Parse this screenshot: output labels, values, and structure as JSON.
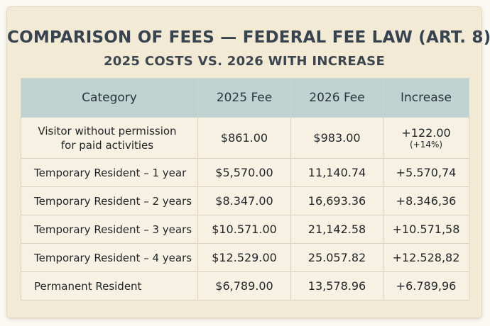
{
  "title": "COMPARISON OF FEES — FEDERAL FEE LAW (ART. 8)",
  "subtitle": "2025 COSTS VS. 2026 WITH INCREASE",
  "table": {
    "headers": [
      "Category",
      "2025 Fee",
      "2026 Fee",
      "Increase"
    ],
    "rows": [
      {
        "category_line1": "Visitor without permission",
        "category_line2": "for paid activities",
        "fee_2025": "$861.00",
        "fee_2026": "$983.00",
        "increase": "+122.00",
        "increase_pct": "(+14%)"
      },
      {
        "category": "Temporary Resident – 1 year",
        "fee_2025": "$5,570.00",
        "fee_2026": "11,140.74",
        "increase": "+5.570,74"
      },
      {
        "category": "Temporary Resident – 2 years",
        "fee_2025": "$8.347.00",
        "fee_2026": "16,693.36",
        "increase": "+8.346,36"
      },
      {
        "category": "Temporary Resident – 3 years",
        "fee_2025": "$10.571.00",
        "fee_2026": "21,142.58",
        "increase": "+10.571,58"
      },
      {
        "category": "Temporary Resident – 4 years",
        "fee_2025": "$12.529.00",
        "fee_2026": "25.057.82",
        "increase": "+12.528,82"
      },
      {
        "category": "Permanent Resident",
        "fee_2025": "$6,789.00",
        "fee_2026": "13,578.96",
        "increase": "+6.789,96"
      }
    ]
  }
}
